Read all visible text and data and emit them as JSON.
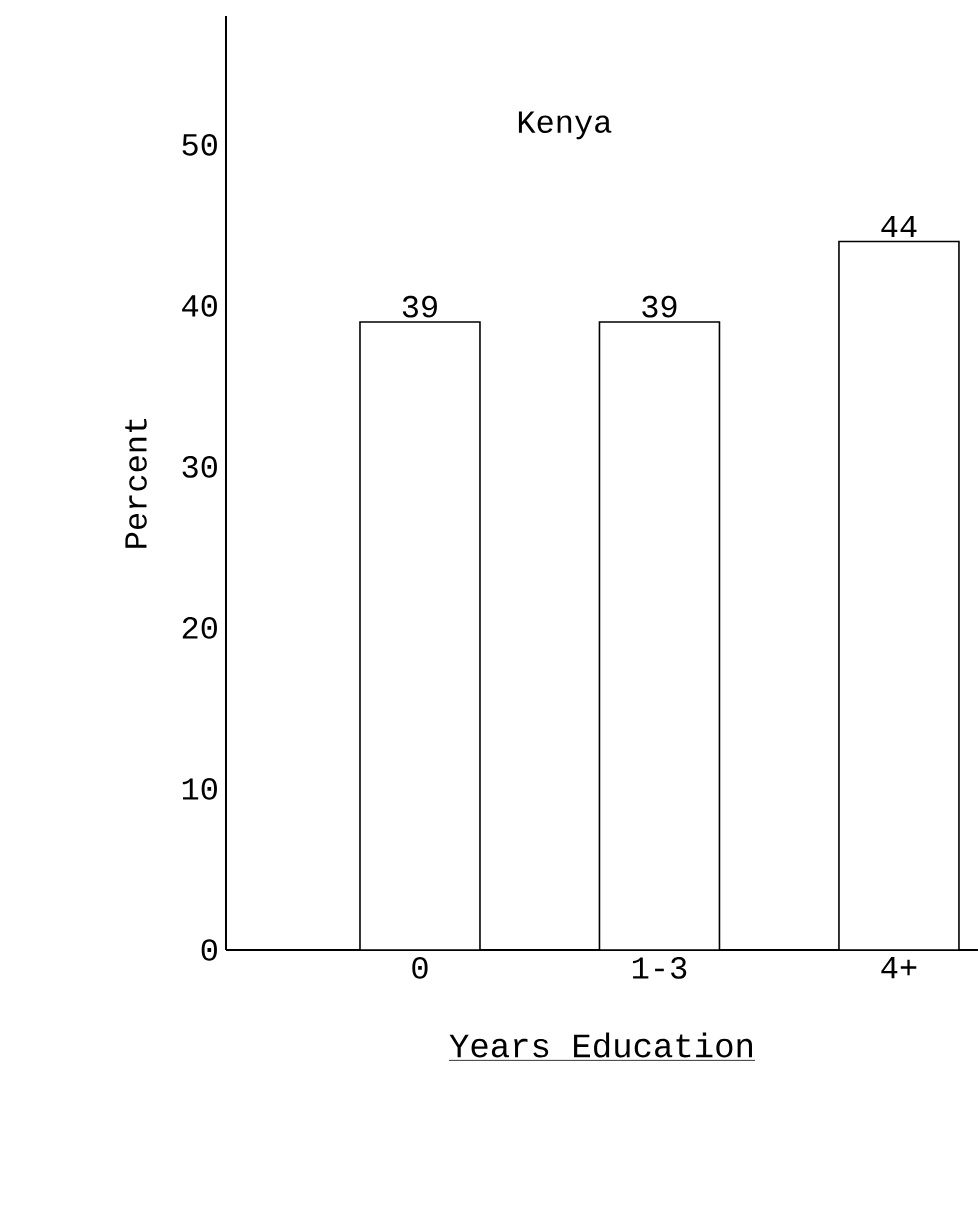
{
  "chart_data": {
    "type": "bar",
    "title": "Kenya",
    "xlabel": "Years Education",
    "ylabel": "Percent",
    "categories": [
      "0",
      "1-3",
      "4+"
    ],
    "values": [
      39,
      39,
      44
    ],
    "color": "#ffffff",
    "ylim": [
      0,
      58
    ],
    "yticks": [
      0,
      10,
      20,
      30,
      40,
      50
    ],
    "data_labels": true,
    "grid": false
  }
}
